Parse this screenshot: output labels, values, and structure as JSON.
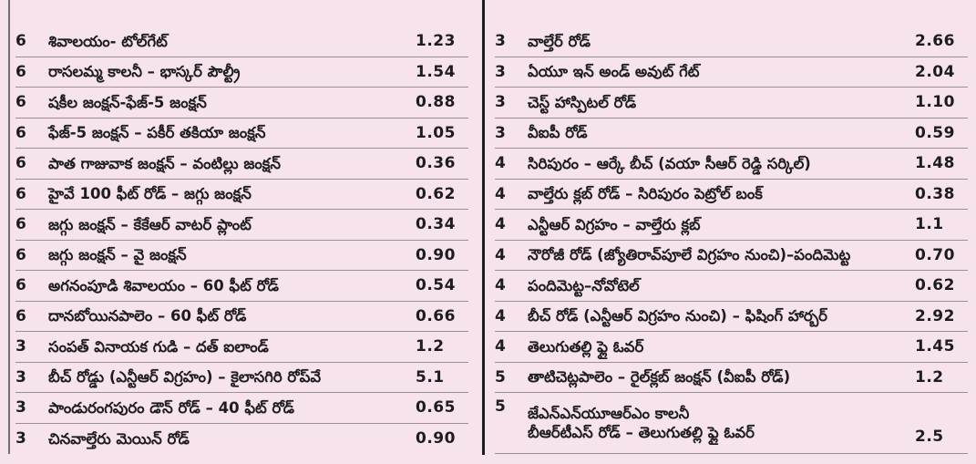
{
  "page": {
    "background_color": "#f7e3ed",
    "text_color": "#1d1d1f",
    "center_divider_color": "#1c1c1c",
    "left_border_color": "#6f6f73",
    "row_separator_color": "#9b8f97"
  },
  "table": {
    "columns": [
      "route_count",
      "route_name",
      "distance_km"
    ],
    "left": [
      {
        "sl": "6",
        "route": "శివాలయం- టోల్‌గేట్",
        "km": "1.23"
      },
      {
        "sl": "6",
        "route": "రాసలమ్మ కాలనీ – భాస్కర్ పౌల్ట్రీ",
        "km": "1.54"
      },
      {
        "sl": "6",
        "route": "షకీల జంక్షన్-ఫేజ్-5 జంక్షన్",
        "km": "0.88"
      },
      {
        "sl": "6",
        "route": "ఫేజ్-5 జంక్షన్ – పకీర్ తకియా జంక్షన్",
        "km": "1.05"
      },
      {
        "sl": "6",
        "route": "పాత గాజువాక జంక్షన్ – వంటిల్లు జంక్షన్",
        "km": "0.36"
      },
      {
        "sl": "6",
        "route": "హైవే 100 ఫీట్ రోడ్ – జగ్గు జంక్షన్",
        "km": "0.62"
      },
      {
        "sl": "6",
        "route": "జగ్గు జంక్షన్ – కేకేఆర్ వాటర్ ప్లాంట్",
        "km": "0.34"
      },
      {
        "sl": "6",
        "route": "జగ్గు జంక్షన్ – వై జంక్షన్",
        "km": "0.90"
      },
      {
        "sl": "6",
        "route": "అగనంపూడి శివాలయం – 60 ఫీట్ రోడ్",
        "km": "0.54"
      },
      {
        "sl": "6",
        "route": "దానబోయినపాలెం – 60 ఫీట్ రోడ్",
        "km": "0.66"
      },
      {
        "sl": "3",
        "route": "సంపత్ వినాయక గుడి – దత్ ఐలాండ్",
        "km": "1.2"
      },
      {
        "sl": "3",
        "route": "బీచ్ రోడ్డు (ఎన్టీఆర్ విగ్రహం) – కైలాసగిరి రోప్‌వే",
        "km": "5.1"
      },
      {
        "sl": "3",
        "route": "పాండురంగపురం డౌన్ రోడ్ – 40 ఫీట్ రోడ్",
        "km": "0.65"
      },
      {
        "sl": "3",
        "route": "చినవాల్తేరు మెయిన్ రోడ్",
        "km": "0.90"
      }
    ],
    "right": [
      {
        "sl": "3",
        "route": "వాల్తేర్ రోడ్",
        "km": "2.66"
      },
      {
        "sl": "3",
        "route": "ఏయూ ఇన్ అండ్ అవుట్ గేట్",
        "km": "2.04"
      },
      {
        "sl": "3",
        "route": "చెస్ట్ హాస్పిటల్ రోడ్",
        "km": "1.10"
      },
      {
        "sl": "3",
        "route": "వీఐపీ రోడ్",
        "km": "0.59"
      },
      {
        "sl": "4",
        "route": "సిరిపురం – ఆర్కే బీచ్ (వయా సీఆర్ రెడ్డి సర్కిల్)",
        "km": "1.48"
      },
      {
        "sl": "4",
        "route": "వాల్తేరు క్లబ్ రోడ్ – సిరిపురం పెట్రోల్ బంక్",
        "km": "0.38"
      },
      {
        "sl": "4",
        "route": "ఎన్టీఆర్ విగ్రహం – వాల్తేరు క్లబ్",
        "km": "1.1"
      },
      {
        "sl": "4",
        "route": "నౌరోజీ రోడ్ (జ్యోతిరావ్‌పూలే విగ్రహం నుంచి)–పందిమెట్ట",
        "km": "0.70"
      },
      {
        "sl": "4",
        "route": "పందిమెట్ట–నోవోటెల్",
        "km": "0.62"
      },
      {
        "sl": "4",
        "route": "బీచ్ రోడ్ (ఎన్టీఆర్ విగ్రహం నుంచి) – ఫిషింగ్ హార్బర్",
        "km": "2.92"
      },
      {
        "sl": "4",
        "route": "తెలుగుతల్లి ఫ్లై ఓవర్",
        "km": "1.45"
      },
      {
        "sl": "5",
        "route": "తాటిచెట్లపాలెం – రైల్‌క్లబ్ జంక్షన్ (వీఐపీ రోడ్)",
        "km": "1.2"
      },
      {
        "sl": "5",
        "route": "జేఎన్ఎన్‌యూఆర్ఎం కాలనీ",
        "route2": "బీఆర్‌టీఎస్ రోడ్ – తెలుగుతల్లి ఫ్లై ఓవర్",
        "km": "2.5"
      }
    ]
  }
}
